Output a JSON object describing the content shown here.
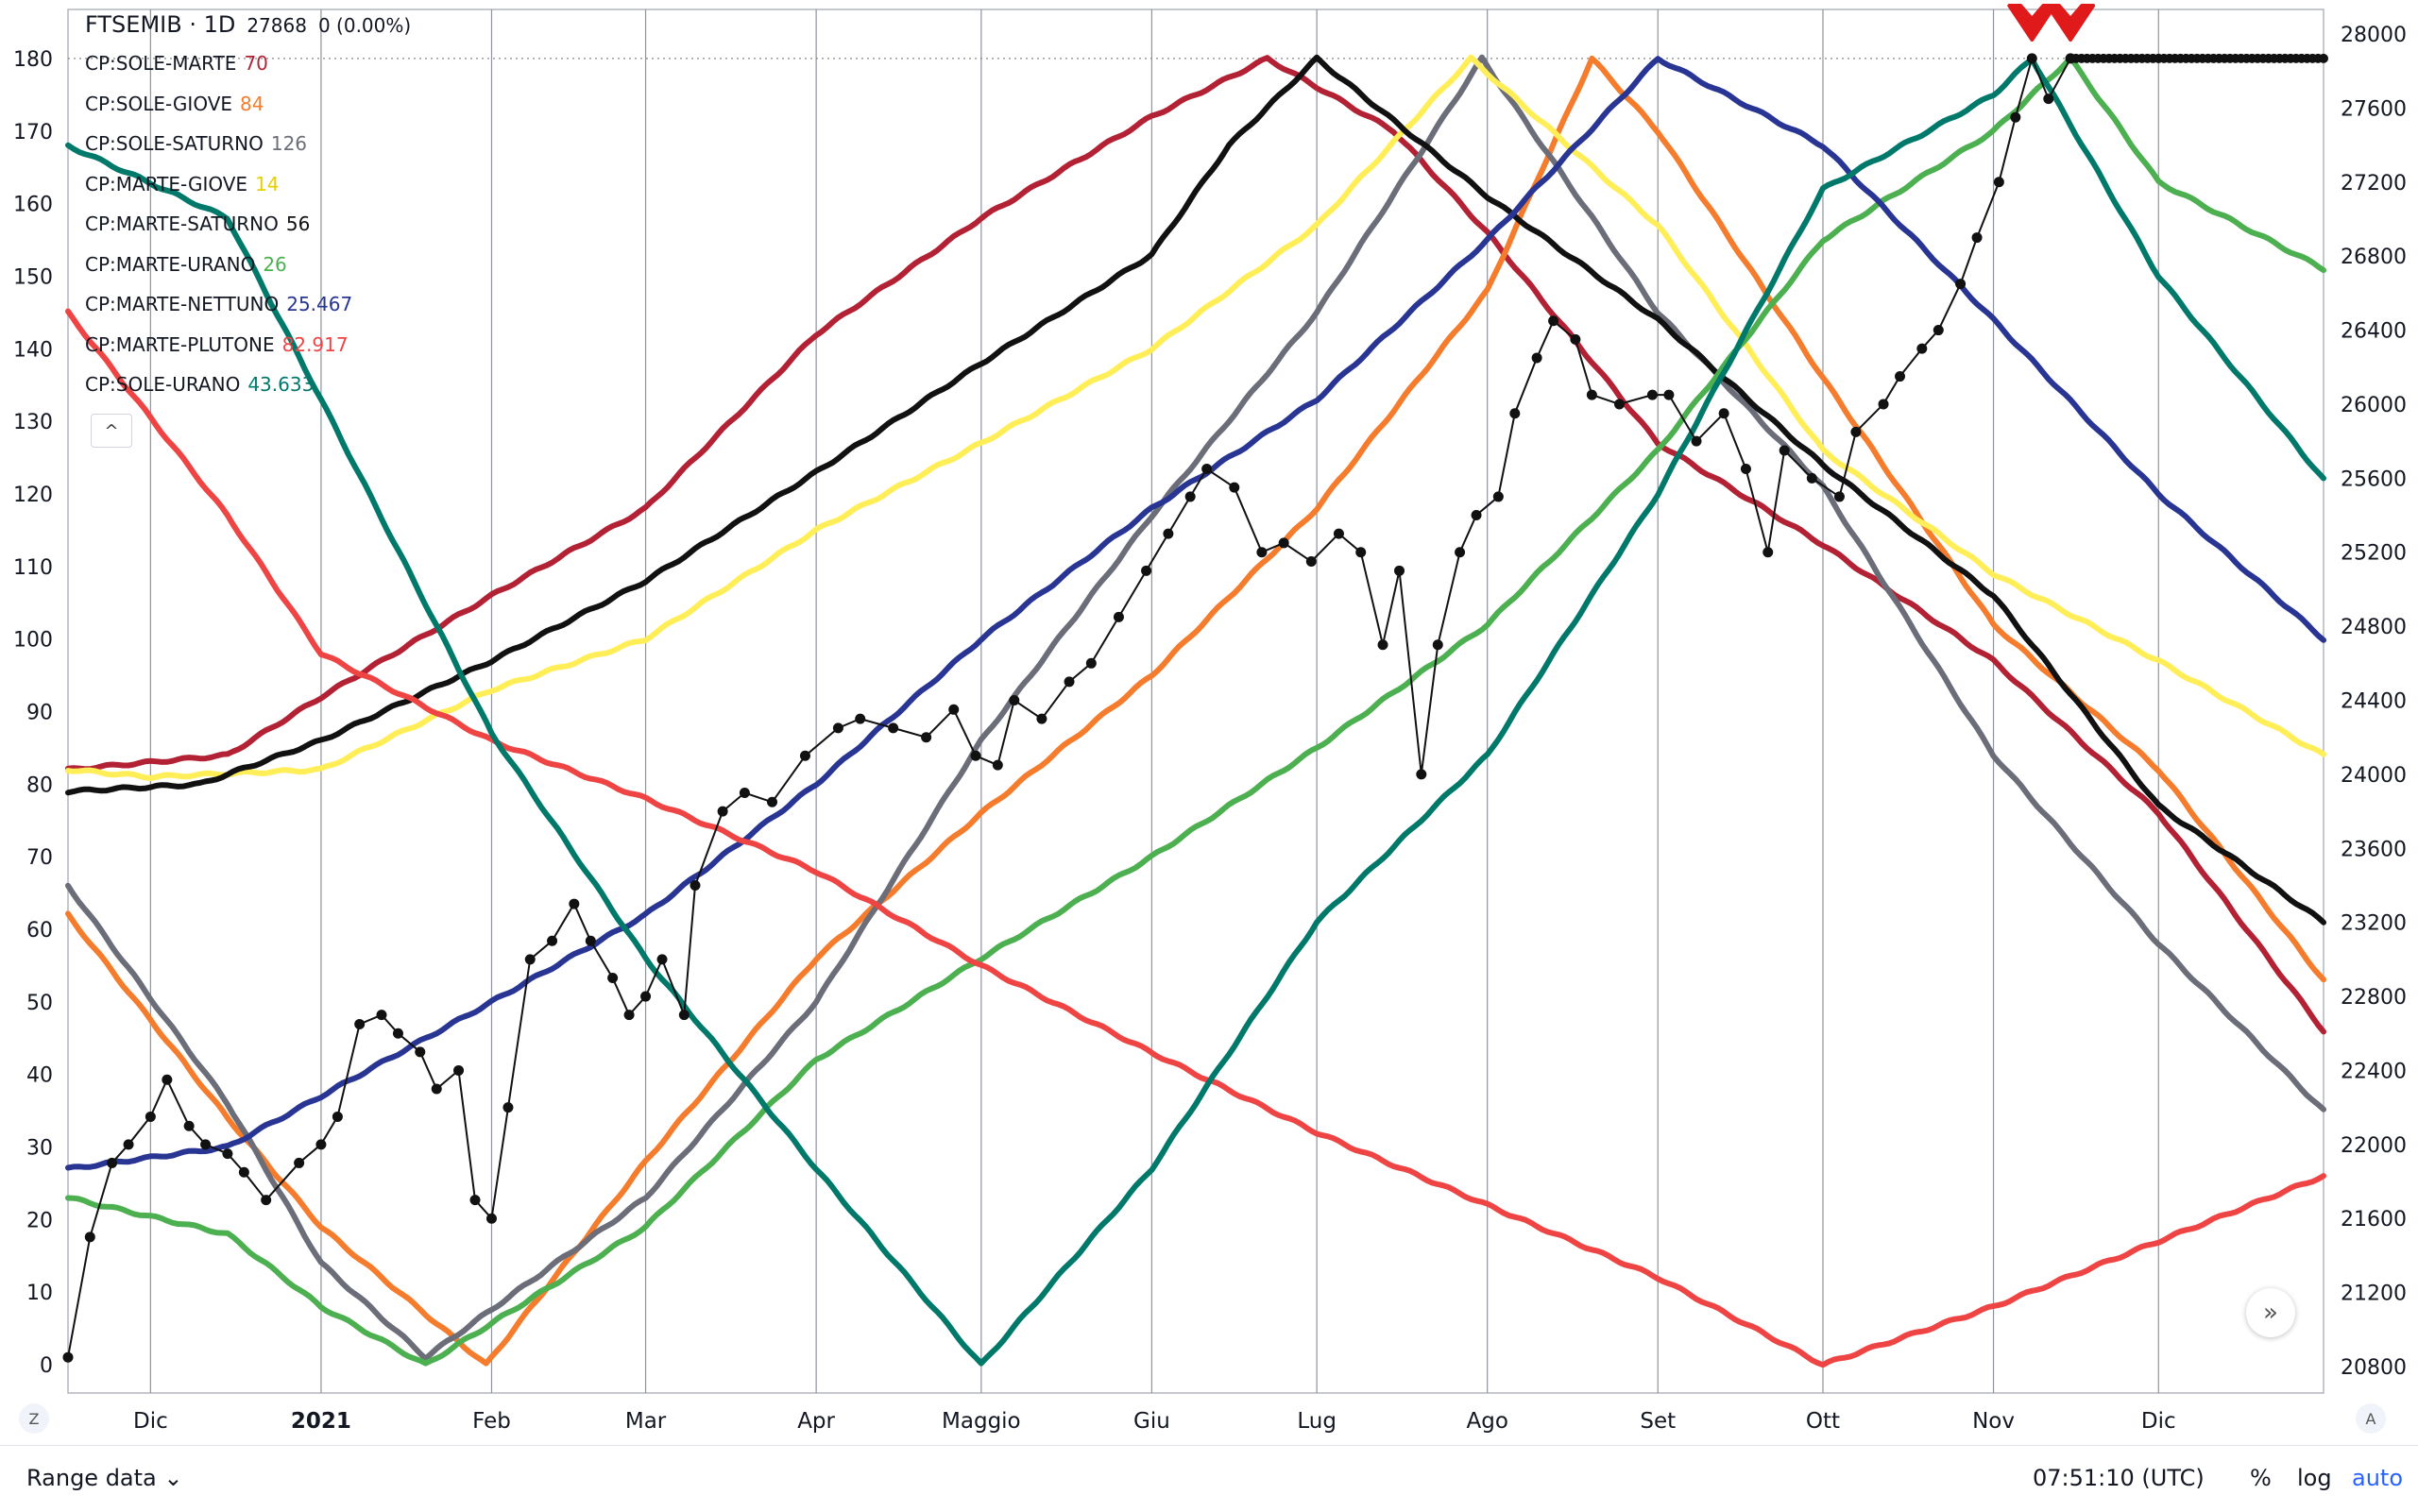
{
  "chart_data": {
    "type": "line",
    "title": "FTSEMIB · 1D",
    "quote": {
      "last": "27868",
      "change": "0 (0.00%)"
    },
    "left_axis": {
      "ylim": [
        0,
        185
      ],
      "ticks": [
        "0",
        "10",
        "20",
        "30",
        "40",
        "50",
        "60",
        "70",
        "80",
        "90",
        "100",
        "110",
        "120",
        "130",
        "140",
        "150",
        "160",
        "170",
        "180"
      ]
    },
    "right_axis": {
      "ylim": [
        20800,
        28000
      ],
      "ticks": [
        "20800",
        "21200",
        "21600",
        "22000",
        "22400",
        "22800",
        "23200",
        "23600",
        "24000",
        "24400",
        "24800",
        "25200",
        "25600",
        "26000",
        "26400",
        "26800",
        "27200",
        "27600",
        "28000"
      ]
    },
    "x_axis": {
      "start": "2020-11-16",
      "end": "2021-12-31",
      "ticks": [
        {
          "label": "Dic",
          "date": "2020-12-01"
        },
        {
          "label": "2021",
          "date": "2021-01-01",
          "bold": true
        },
        {
          "label": "Feb",
          "date": "2021-02-01"
        },
        {
          "label": "Mar",
          "date": "2021-03-01"
        },
        {
          "label": "Apr",
          "date": "2021-04-01"
        },
        {
          "label": "Maggio",
          "date": "2021-05-01"
        },
        {
          "label": "Giu",
          "date": "2021-06-01"
        },
        {
          "label": "Lug",
          "date": "2021-07-01"
        },
        {
          "label": "Ago",
          "date": "2021-08-01"
        },
        {
          "label": "Set",
          "date": "2021-09-01"
        },
        {
          "label": "Ott",
          "date": "2021-10-01"
        },
        {
          "label": "Nov",
          "date": "2021-11-01"
        },
        {
          "label": "Dic",
          "date": "2021-12-01"
        }
      ]
    },
    "grid": true,
    "series": [
      {
        "name": "CP:SOLE-MARTE",
        "value_label": "70",
        "color": "#b22234",
        "axis": "left",
        "points": [
          [
            "2020-11-16",
            82
          ],
          [
            "2020-12-15",
            84
          ],
          [
            "2021-01-01",
            92
          ],
          [
            "2021-02-01",
            106
          ],
          [
            "2021-03-01",
            118
          ],
          [
            "2021-04-01",
            142
          ],
          [
            "2021-05-01",
            158
          ],
          [
            "2021-06-01",
            172
          ],
          [
            "2021-06-22",
            180
          ],
          [
            "2021-07-15",
            170
          ],
          [
            "2021-08-01",
            156
          ],
          [
            "2021-09-01",
            127
          ],
          [
            "2021-10-01",
            113
          ],
          [
            "2021-11-01",
            97
          ],
          [
            "2021-12-01",
            76
          ],
          [
            "2021-12-31",
            46
          ]
        ]
      },
      {
        "name": "CP:SOLE-GIOVE",
        "value_label": "84",
        "color": "#f57c2c",
        "axis": "left",
        "points": [
          [
            "2020-11-16",
            62
          ],
          [
            "2020-12-15",
            34
          ],
          [
            "2021-01-01",
            19
          ],
          [
            "2021-01-31",
            0
          ],
          [
            "2021-03-01",
            28
          ],
          [
            "2021-04-01",
            56
          ],
          [
            "2021-05-01",
            76
          ],
          [
            "2021-06-01",
            95
          ],
          [
            "2021-07-01",
            118
          ],
          [
            "2021-08-01",
            148
          ],
          [
            "2021-08-20",
            180
          ],
          [
            "2021-09-01",
            170
          ],
          [
            "2021-10-01",
            136
          ],
          [
            "2021-11-01",
            102
          ],
          [
            "2021-12-01",
            82
          ],
          [
            "2021-12-31",
            53
          ]
        ]
      },
      {
        "name": "CP:SOLE-SATURNO",
        "value_label": "126",
        "color": "#6b6e78",
        "axis": "left",
        "points": [
          [
            "2020-11-16",
            66
          ],
          [
            "2020-12-15",
            36
          ],
          [
            "2021-01-01",
            14
          ],
          [
            "2021-01-20",
            1
          ],
          [
            "2021-03-01",
            23
          ],
          [
            "2021-04-01",
            50
          ],
          [
            "2021-05-01",
            86
          ],
          [
            "2021-06-01",
            117
          ],
          [
            "2021-07-01",
            145
          ],
          [
            "2021-07-31",
            180
          ],
          [
            "2021-09-01",
            145
          ],
          [
            "2021-10-01",
            121
          ],
          [
            "2021-11-01",
            84
          ],
          [
            "2021-12-01",
            58
          ],
          [
            "2021-12-31",
            35
          ]
        ]
      },
      {
        "name": "CP:MARTE-GIOVE",
        "value_label": "14",
        "color": "#ffee58",
        "axis": "left",
        "points": [
          [
            "2020-11-16",
            82
          ],
          [
            "2020-12-01",
            81
          ],
          [
            "2021-01-01",
            82
          ],
          [
            "2021-02-01",
            93
          ],
          [
            "2021-03-01",
            100
          ],
          [
            "2021-04-01",
            115
          ],
          [
            "2021-05-01",
            127
          ],
          [
            "2021-06-01",
            140
          ],
          [
            "2021-07-01",
            157
          ],
          [
            "2021-07-29",
            180
          ],
          [
            "2021-09-01",
            157
          ],
          [
            "2021-10-01",
            126
          ],
          [
            "2021-11-01",
            109
          ],
          [
            "2021-12-01",
            97
          ],
          [
            "2021-12-31",
            84
          ]
        ]
      },
      {
        "name": "CP:MARTE-SATURNO",
        "value_label": "56",
        "color": "#111111",
        "axis": "left",
        "points": [
          [
            "2020-11-16",
            79
          ],
          [
            "2020-12-10",
            80
          ],
          [
            "2021-01-01",
            86
          ],
          [
            "2021-02-01",
            97
          ],
          [
            "2021-03-01",
            108
          ],
          [
            "2021-04-01",
            123
          ],
          [
            "2021-05-01",
            138
          ],
          [
            "2021-06-01",
            153
          ],
          [
            "2021-06-15",
            168
          ],
          [
            "2021-07-01",
            180
          ],
          [
            "2021-08-01",
            161
          ],
          [
            "2021-09-01",
            144
          ],
          [
            "2021-10-01",
            124
          ],
          [
            "2021-11-01",
            106
          ],
          [
            "2021-12-01",
            77
          ],
          [
            "2021-12-31",
            61
          ]
        ]
      },
      {
        "name": "CP:MARTE-URANO",
        "value_label": "26",
        "color": "#4caf50",
        "axis": "left",
        "points": [
          [
            "2020-11-16",
            23
          ],
          [
            "2020-12-15",
            18
          ],
          [
            "2021-01-01",
            8
          ],
          [
            "2021-01-20",
            0
          ],
          [
            "2021-03-01",
            19
          ],
          [
            "2021-04-01",
            42
          ],
          [
            "2021-05-01",
            56
          ],
          [
            "2021-06-01",
            70
          ],
          [
            "2021-07-01",
            85
          ],
          [
            "2021-08-01",
            102
          ],
          [
            "2021-09-01",
            126
          ],
          [
            "2021-10-01",
            155
          ],
          [
            "2021-11-01",
            170
          ],
          [
            "2021-11-15",
            180
          ],
          [
            "2021-12-01",
            163
          ],
          [
            "2021-12-31",
            151
          ]
        ]
      },
      {
        "name": "CP:MARTE-NETTUNO",
        "value_label": "25.467",
        "color": "#283593",
        "axis": "left",
        "points": [
          [
            "2020-11-16",
            27
          ],
          [
            "2020-12-15",
            30
          ],
          [
            "2021-01-01",
            37
          ],
          [
            "2021-02-01",
            50
          ],
          [
            "2021-03-01",
            62
          ],
          [
            "2021-04-01",
            80
          ],
          [
            "2021-05-01",
            100
          ],
          [
            "2021-06-01",
            118
          ],
          [
            "2021-07-01",
            133
          ],
          [
            "2021-08-01",
            155
          ],
          [
            "2021-09-01",
            180
          ],
          [
            "2021-10-01",
            168
          ],
          [
            "2021-11-01",
            144
          ],
          [
            "2021-12-01",
            120
          ],
          [
            "2021-12-31",
            100
          ]
        ]
      },
      {
        "name": "CP:MARTE-PLUTONE",
        "value_label": "82.917",
        "color": "#ef4444",
        "axis": "left",
        "points": [
          [
            "2020-11-16",
            145
          ],
          [
            "2020-12-15",
            117
          ],
          [
            "2021-01-01",
            98
          ],
          [
            "2021-02-01",
            86
          ],
          [
            "2021-03-01",
            78
          ],
          [
            "2021-04-01",
            68
          ],
          [
            "2021-05-01",
            55
          ],
          [
            "2021-06-01",
            43
          ],
          [
            "2021-07-01",
            32
          ],
          [
            "2021-08-01",
            22
          ],
          [
            "2021-09-01",
            12
          ],
          [
            "2021-10-01",
            0
          ],
          [
            "2021-11-01",
            8
          ],
          [
            "2021-12-01",
            17
          ],
          [
            "2021-12-31",
            26
          ]
        ]
      },
      {
        "name": "CP:SOLE-URANO",
        "value_label": "43.633",
        "color": "#00796b",
        "axis": "left",
        "points": [
          [
            "2020-11-16",
            168
          ],
          [
            "2020-12-15",
            158
          ],
          [
            "2021-01-01",
            133
          ],
          [
            "2021-02-01",
            87
          ],
          [
            "2021-03-01",
            56
          ],
          [
            "2021-04-01",
            27
          ],
          [
            "2021-05-01",
            0
          ],
          [
            "2021-06-01",
            27
          ],
          [
            "2021-07-01",
            61
          ],
          [
            "2021-08-01",
            84
          ],
          [
            "2021-09-01",
            120
          ],
          [
            "2021-10-01",
            162
          ],
          [
            "2021-11-01",
            175
          ],
          [
            "2021-11-08",
            180
          ],
          [
            "2021-12-01",
            150
          ],
          [
            "2021-12-31",
            122
          ]
        ]
      }
    ],
    "price": {
      "name": "FTSEMIB",
      "axis": "right",
      "color": "#111111",
      "points": [
        [
          "2020-11-16",
          20850
        ],
        [
          "2020-11-20",
          21500
        ],
        [
          "2020-11-24",
          21900
        ],
        [
          "2020-11-27",
          22000
        ],
        [
          "2020-12-01",
          22150
        ],
        [
          "2020-12-04",
          22350
        ],
        [
          "2020-12-08",
          22100
        ],
        [
          "2020-12-11",
          22000
        ],
        [
          "2020-12-15",
          21950
        ],
        [
          "2020-12-18",
          21850
        ],
        [
          "2020-12-22",
          21700
        ],
        [
          "2020-12-28",
          21900
        ],
        [
          "2021-01-01",
          22000
        ],
        [
          "2021-01-04",
          22150
        ],
        [
          "2021-01-08",
          22650
        ],
        [
          "2021-01-12",
          22700
        ],
        [
          "2021-01-15",
          22600
        ],
        [
          "2021-01-19",
          22500
        ],
        [
          "2021-01-22",
          22300
        ],
        [
          "2021-01-26",
          22400
        ],
        [
          "2021-01-29",
          21700
        ],
        [
          "2021-02-01",
          21600
        ],
        [
          "2021-02-04",
          22200
        ],
        [
          "2021-02-08",
          23000
        ],
        [
          "2021-02-12",
          23100
        ],
        [
          "2021-02-16",
          23300
        ],
        [
          "2021-02-19",
          23100
        ],
        [
          "2021-02-23",
          22900
        ],
        [
          "2021-02-26",
          22700
        ],
        [
          "2021-03-01",
          22800
        ],
        [
          "2021-03-04",
          23000
        ],
        [
          "2021-03-08",
          22700
        ],
        [
          "2021-03-10",
          23400
        ],
        [
          "2021-03-15",
          23800
        ],
        [
          "2021-03-19",
          23900
        ],
        [
          "2021-03-24",
          23850
        ],
        [
          "2021-03-30",
          24100
        ],
        [
          "2021-04-05",
          24250
        ],
        [
          "2021-04-09",
          24300
        ],
        [
          "2021-04-15",
          24250
        ],
        [
          "2021-04-21",
          24200
        ],
        [
          "2021-04-26",
          24350
        ],
        [
          "2021-04-30",
          24100
        ],
        [
          "2021-05-04",
          24050
        ],
        [
          "2021-05-07",
          24400
        ],
        [
          "2021-05-12",
          24300
        ],
        [
          "2021-05-17",
          24500
        ],
        [
          "2021-05-21",
          24600
        ],
        [
          "2021-05-26",
          24850
        ],
        [
          "2021-05-31",
          25100
        ],
        [
          "2021-06-04",
          25300
        ],
        [
          "2021-06-08",
          25500
        ],
        [
          "2021-06-11",
          25650
        ],
        [
          "2021-06-16",
          25550
        ],
        [
          "2021-06-21",
          25200
        ],
        [
          "2021-06-25",
          25250
        ],
        [
          "2021-06-30",
          25150
        ],
        [
          "2021-07-05",
          25300
        ],
        [
          "2021-07-09",
          25200
        ],
        [
          "2021-07-13",
          24700
        ],
        [
          "2021-07-16",
          25100
        ],
        [
          "2021-07-20",
          24000
        ],
        [
          "2021-07-23",
          24700
        ],
        [
          "2021-07-27",
          25200
        ],
        [
          "2021-07-30",
          25400
        ],
        [
          "2021-08-03",
          25500
        ],
        [
          "2021-08-06",
          25950
        ],
        [
          "2021-08-10",
          26250
        ],
        [
          "2021-08-13",
          26450
        ],
        [
          "2021-08-17",
          26350
        ],
        [
          "2021-08-20",
          26050
        ],
        [
          "2021-08-25",
          26000
        ],
        [
          "2021-08-31",
          26050
        ],
        [
          "2021-09-03",
          26050
        ],
        [
          "2021-09-08",
          25800
        ],
        [
          "2021-09-13",
          25950
        ],
        [
          "2021-09-17",
          25650
        ],
        [
          "2021-09-21",
          25200
        ],
        [
          "2021-09-24",
          25750
        ],
        [
          "2021-09-29",
          25600
        ],
        [
          "2021-10-04",
          25500
        ],
        [
          "2021-10-07",
          25850
        ],
        [
          "2021-10-12",
          26000
        ],
        [
          "2021-10-15",
          26150
        ],
        [
          "2021-10-19",
          26300
        ],
        [
          "2021-10-22",
          26400
        ],
        [
          "2021-10-26",
          26650
        ],
        [
          "2021-10-29",
          26900
        ],
        [
          "2021-11-02",
          27200
        ],
        [
          "2021-11-05",
          27550
        ],
        [
          "2021-11-08",
          27868
        ],
        [
          "2021-11-11",
          27650
        ],
        [
          "2021-11-15",
          27868
        ]
      ]
    },
    "projection": {
      "from": "2021-11-15",
      "to": "2021-12-31",
      "value": 27868,
      "axis": "right"
    },
    "markers": [
      {
        "label": "red-arrow",
        "date": "2021-11-08"
      },
      {
        "label": "red-arrow",
        "date": "2021-11-15"
      }
    ]
  },
  "ui": {
    "range_button": "Range data",
    "clock": "07:51:10 (UTC)",
    "pct": "%",
    "log": "log",
    "auto": "auto",
    "collapse": "^",
    "scroll_right": "»",
    "corner_left": "Z",
    "corner_right": "A"
  }
}
